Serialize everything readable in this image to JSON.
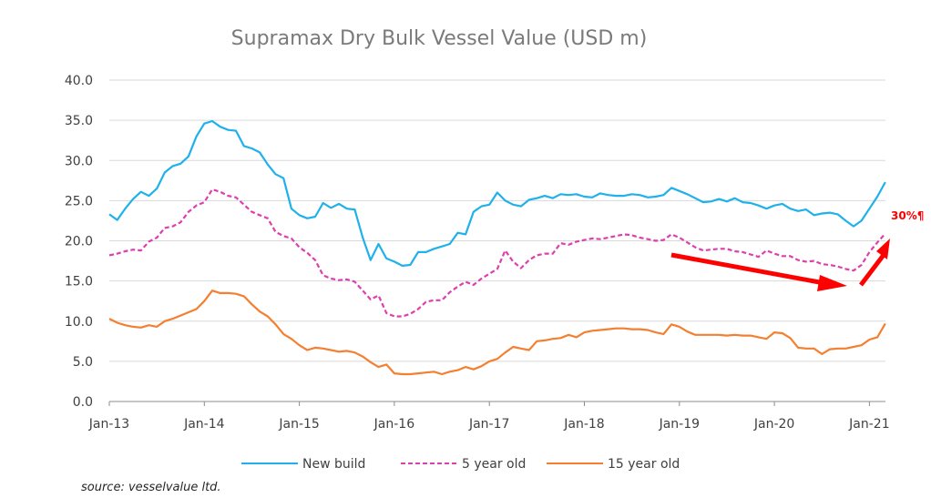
{
  "chart_data": {
    "type": "line",
    "title": "Supramax Dry Bulk Vessel Value (USD m)",
    "xlabel": "",
    "ylabel": "",
    "ylim": [
      0,
      40
    ],
    "yticks": [
      "0.0",
      "5.0",
      "10.0",
      "15.0",
      "20.0",
      "25.0",
      "30.0",
      "35.0",
      "40.0"
    ],
    "ytick_values": [
      0,
      5,
      10,
      15,
      20,
      25,
      30,
      35,
      40
    ],
    "xticks": [
      "Jan-13",
      "Jan-14",
      "Jan-15",
      "Jan-16",
      "Jan-17",
      "Jan-18",
      "Jan-19",
      "Jan-20",
      "Jan-21"
    ],
    "xlim_years": [
      0,
      8.2
    ],
    "grid": true,
    "legend_position": "bottom",
    "x_unit": "years since Jan-13 (monthly samples)",
    "x": [
      0,
      0.083,
      0.167,
      0.25,
      0.333,
      0.417,
      0.5,
      0.583,
      0.667,
      0.75,
      0.833,
      0.917,
      1.0,
      1.083,
      1.167,
      1.25,
      1.333,
      1.417,
      1.5,
      1.583,
      1.667,
      1.75,
      1.833,
      1.917,
      2.0,
      2.083,
      2.167,
      2.25,
      2.333,
      2.417,
      2.5,
      2.583,
      2.667,
      2.75,
      2.833,
      2.917,
      3.0,
      3.083,
      3.167,
      3.25,
      3.333,
      3.417,
      3.5,
      3.583,
      3.667,
      3.75,
      3.833,
      3.917,
      4.0,
      4.083,
      4.167,
      4.25,
      4.333,
      4.417,
      4.5,
      4.583,
      4.667,
      4.75,
      4.833,
      4.917,
      5.0,
      5.083,
      5.167,
      5.25,
      5.333,
      5.417,
      5.5,
      5.583,
      5.667,
      5.75,
      5.833,
      5.917,
      6.0,
      6.083,
      6.167,
      6.25,
      6.333,
      6.417,
      6.5,
      6.583,
      6.667,
      6.75,
      6.833,
      6.917,
      7.0,
      7.083,
      7.167,
      7.25,
      7.333,
      7.417,
      7.5,
      7.583,
      7.667,
      7.75,
      7.833,
      7.917,
      8.0,
      8.083,
      8.167
    ],
    "series": [
      {
        "name": "New build",
        "color": "#1fb1e9",
        "dash": "solid",
        "values": [
          23.3,
          22.6,
          24.0,
          25.2,
          26.1,
          25.6,
          26.5,
          28.5,
          29.3,
          29.6,
          30.5,
          33.0,
          34.6,
          34.9,
          34.2,
          33.8,
          33.7,
          31.8,
          31.5,
          31.0,
          29.5,
          28.3,
          27.8,
          24.0,
          23.2,
          22.8,
          23.0,
          24.7,
          24.1,
          24.6,
          24.0,
          23.9,
          20.4,
          17.6,
          19.6,
          17.8,
          17.4,
          16.9,
          17.0,
          18.6,
          18.6,
          19.0,
          19.3,
          19.6,
          21.0,
          20.8,
          23.6,
          24.3,
          24.5,
          26.0,
          25.0,
          24.5,
          24.3,
          25.1,
          25.3,
          25.6,
          25.3,
          25.8,
          25.7,
          25.8,
          25.5,
          25.4,
          25.9,
          25.7,
          25.6,
          25.6,
          25.8,
          25.7,
          25.4,
          25.5,
          25.7,
          26.6,
          26.2,
          25.8,
          25.3,
          24.8,
          24.9,
          25.2,
          24.9,
          25.3,
          24.8,
          24.7,
          24.4,
          24.0,
          24.4,
          24.6,
          24.0,
          23.7,
          23.9,
          23.2,
          23.4,
          23.5,
          23.3,
          22.5,
          21.8,
          22.5,
          24.0,
          25.5,
          27.3
        ]
      },
      {
        "name": "5 year old",
        "color": "#dd3fae",
        "dash": "dashed",
        "values": [
          18.2,
          18.4,
          18.7,
          18.9,
          18.8,
          19.9,
          20.4,
          21.6,
          21.8,
          22.3,
          23.6,
          24.4,
          24.8,
          26.4,
          26.1,
          25.6,
          25.4,
          24.5,
          23.6,
          23.2,
          22.8,
          21.1,
          20.6,
          20.3,
          19.2,
          18.5,
          17.6,
          15.7,
          15.3,
          15.1,
          15.2,
          14.9,
          13.8,
          12.7,
          13.2,
          11.0,
          10.6,
          10.6,
          10.9,
          11.5,
          12.4,
          12.6,
          12.6,
          13.6,
          14.3,
          14.9,
          14.5,
          15.3,
          15.9,
          16.5,
          18.8,
          17.4,
          16.6,
          17.6,
          18.2,
          18.4,
          18.4,
          19.7,
          19.5,
          19.9,
          20.1,
          20.3,
          20.2,
          20.4,
          20.6,
          20.8,
          20.7,
          20.4,
          20.2,
          20.0,
          20.1,
          20.8,
          20.4,
          19.8,
          19.2,
          18.8,
          18.9,
          19.0,
          19.0,
          18.7,
          18.6,
          18.3,
          18.0,
          18.8,
          18.4,
          18.1,
          18.1,
          17.6,
          17.4,
          17.5,
          17.1,
          17.0,
          16.8,
          16.5,
          16.3,
          17.0,
          18.6,
          19.8,
          20.9
        ]
      },
      {
        "name": "15 year old",
        "color": "#f47f30",
        "dash": "solid",
        "values": [
          10.3,
          9.8,
          9.5,
          9.3,
          9.2,
          9.5,
          9.3,
          10.0,
          10.3,
          10.7,
          11.1,
          11.5,
          12.5,
          13.8,
          13.5,
          13.5,
          13.4,
          13.1,
          12.1,
          11.2,
          10.6,
          9.6,
          8.4,
          7.8,
          7.0,
          6.4,
          6.7,
          6.6,
          6.4,
          6.2,
          6.3,
          6.1,
          5.6,
          4.9,
          4.3,
          4.6,
          3.5,
          3.4,
          3.4,
          3.5,
          3.6,
          3.7,
          3.4,
          3.7,
          3.9,
          4.3,
          4.0,
          4.4,
          5.0,
          5.3,
          6.1,
          6.8,
          6.6,
          6.4,
          7.5,
          7.6,
          7.8,
          7.9,
          8.3,
          8.0,
          8.6,
          8.8,
          8.9,
          9.0,
          9.1,
          9.1,
          9.0,
          9.0,
          8.9,
          8.6,
          8.4,
          9.6,
          9.3,
          8.7,
          8.3,
          8.3,
          8.3,
          8.3,
          8.2,
          8.3,
          8.2,
          8.2,
          8.0,
          7.8,
          8.6,
          8.5,
          7.9,
          6.7,
          6.6,
          6.6,
          5.9,
          6.5,
          6.6,
          6.6,
          6.8,
          7.0,
          7.7,
          8.0,
          9.7
        ]
      }
    ],
    "annotations": [
      {
        "type": "arrow",
        "description": "declining trend arrow from ~Dec-18 to ~Nov-20"
      },
      {
        "type": "arrow",
        "description": "rising trend arrow from ~Dec-20 upward"
      },
      {
        "type": "text",
        "text": "30%¶",
        "color": "#ff0000"
      }
    ]
  },
  "legend": [
    {
      "label": "New build",
      "color": "#1fb1e9",
      "dash": "solid"
    },
    {
      "label": "5 year old",
      "color": "#dd3fae",
      "dash": "dashed"
    },
    {
      "label": "15 year old",
      "color": "#f47f30",
      "dash": "solid"
    }
  ],
  "source": "source: vesselvalue ltd.",
  "annotation_color": "#ff0000"
}
